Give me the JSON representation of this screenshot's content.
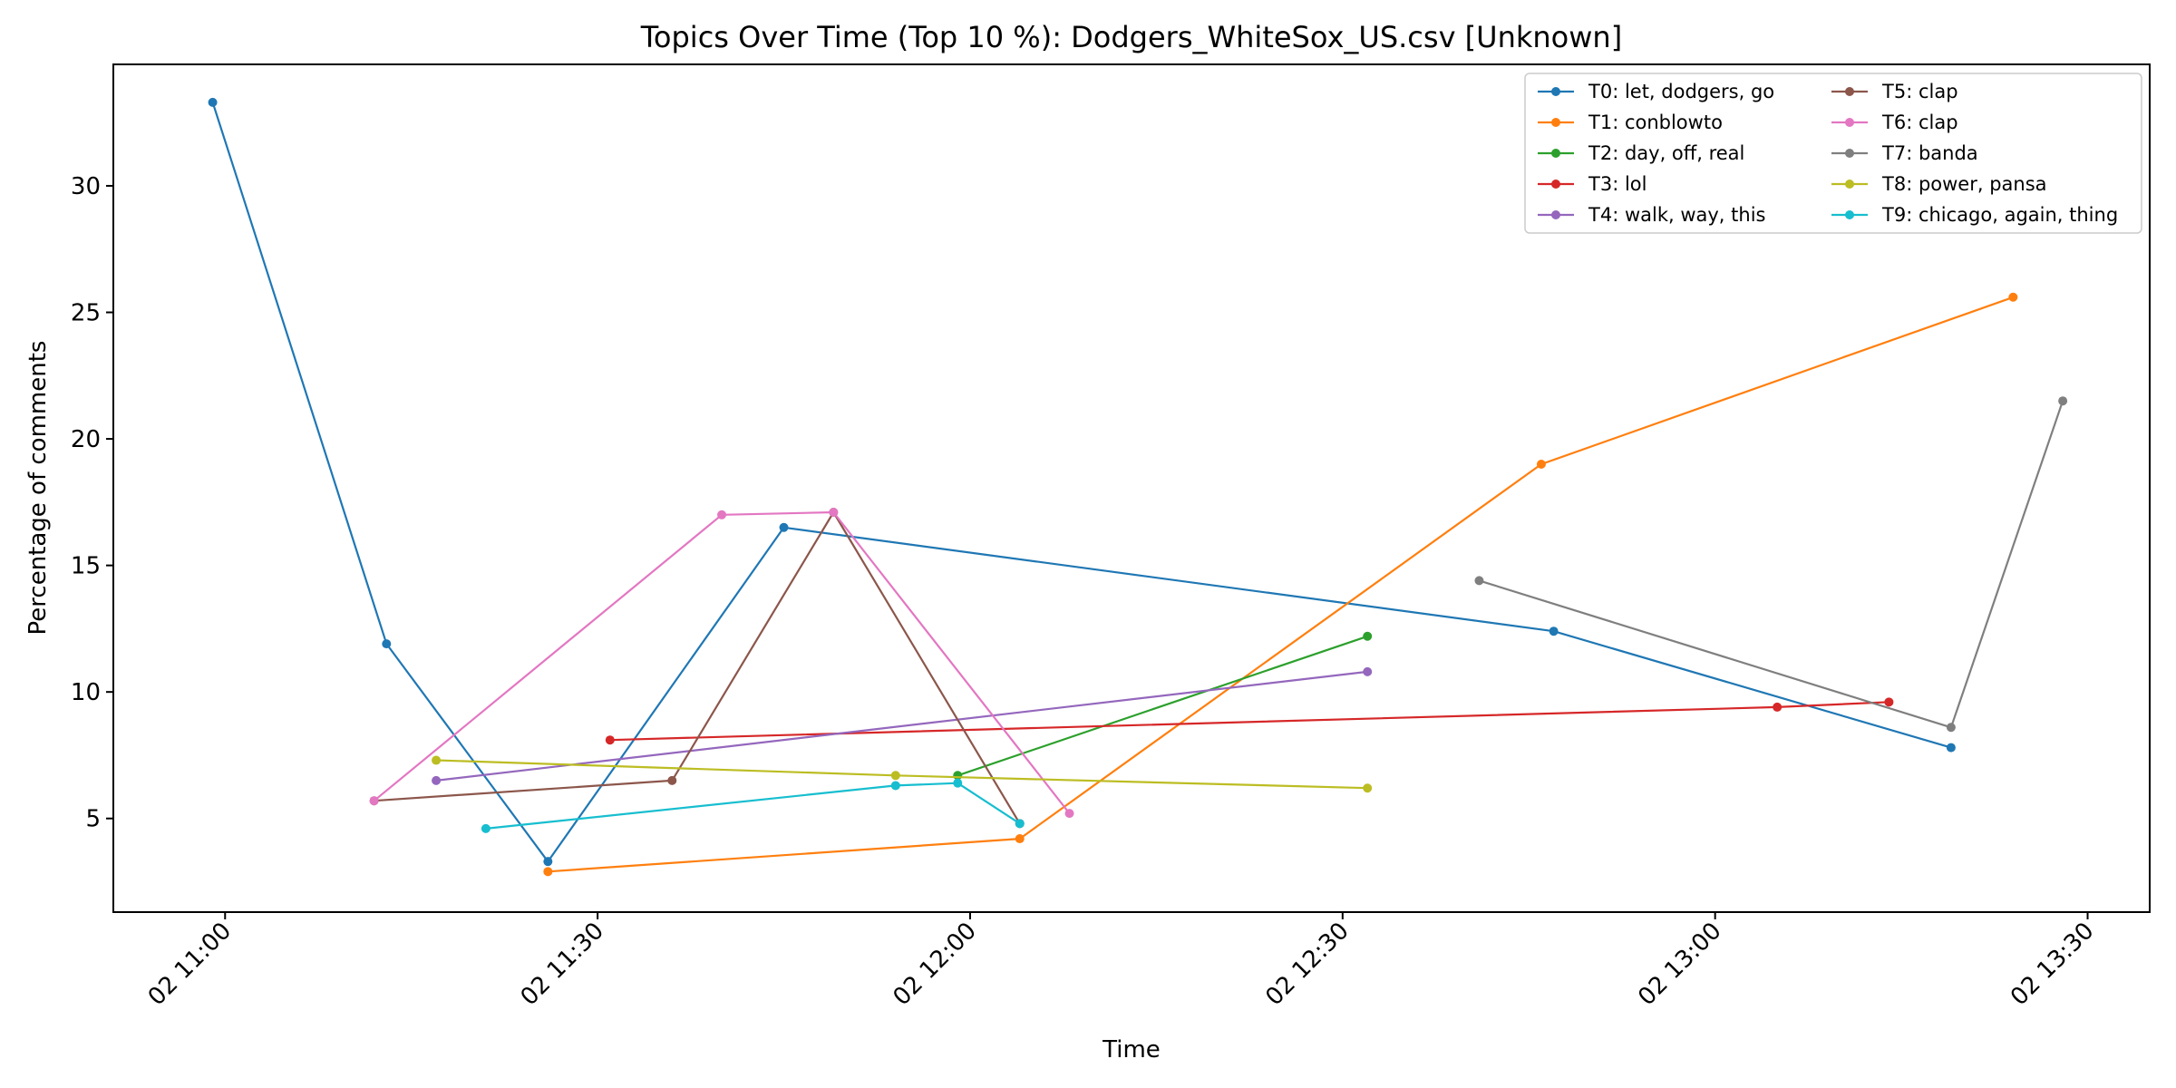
{
  "chart_data": {
    "type": "line",
    "title": "Topics Over Time (Top 10 %): Dodgers_WhiteSox_US.csv [Unknown]",
    "xlabel": "Time",
    "ylabel": "Percentage of comments",
    "x_ticks": [
      {
        "label": "02 11:00",
        "time": "11:00"
      },
      {
        "label": "02 11:30",
        "time": "11:30"
      },
      {
        "label": "02 12:00",
        "time": "12:00"
      },
      {
        "label": "02 12:30",
        "time": "12:30"
      },
      {
        "label": "02 13:00",
        "time": "13:00"
      },
      {
        "label": "02 13:30",
        "time": "13:30"
      }
    ],
    "xlim": [
      "10:51",
      "13:35"
    ],
    "y_ticks": [
      5,
      10,
      15,
      20,
      25,
      30
    ],
    "ylim": [
      1.3,
      34.8
    ],
    "grid": false,
    "legend_position": "top-right",
    "series": [
      {
        "name": "T0: let, dodgers, go",
        "color": "#1f77b4",
        "points": [
          [
            "10:59",
            33.3
          ],
          [
            "11:13",
            11.9
          ],
          [
            "11:26",
            3.3
          ],
          [
            "11:45",
            16.5
          ],
          [
            "12:47",
            12.4
          ],
          [
            "13:19",
            7.8
          ]
        ]
      },
      {
        "name": "T1: conblowto",
        "color": "#ff7f0e",
        "points": [
          [
            "11:26",
            2.9
          ],
          [
            "12:04",
            4.2
          ],
          [
            "12:46",
            19.0
          ],
          [
            "13:24",
            25.6
          ]
        ]
      },
      {
        "name": "T2: day, off, real",
        "color": "#2ca02c",
        "points": [
          [
            "11:59",
            6.7
          ],
          [
            "12:32",
            12.2
          ]
        ]
      },
      {
        "name": "T3: lol",
        "color": "#d62728",
        "points": [
          [
            "11:31",
            8.1
          ],
          [
            "13:05",
            9.4
          ],
          [
            "13:14",
            9.6
          ]
        ]
      },
      {
        "name": "T4: walk, way, this",
        "color": "#9467bd",
        "points": [
          [
            "11:17",
            6.5
          ],
          [
            "12:32",
            10.8
          ]
        ]
      },
      {
        "name": "T5: clap",
        "color": "#8c564b",
        "points": [
          [
            "11:12",
            5.7
          ],
          [
            "11:36",
            6.5
          ],
          [
            "11:49",
            17.1
          ],
          [
            "12:04",
            4.8
          ]
        ]
      },
      {
        "name": "T6: clap",
        "color": "#e377c2",
        "points": [
          [
            "11:12",
            5.7
          ],
          [
            "11:40",
            17.0
          ],
          [
            "11:49",
            17.1
          ],
          [
            "12:08",
            5.2
          ]
        ]
      },
      {
        "name": "T7: banda",
        "color": "#7f7f7f",
        "points": [
          [
            "12:41",
            14.4
          ],
          [
            "13:19",
            8.6
          ],
          [
            "13:28",
            21.5
          ]
        ]
      },
      {
        "name": "T8: power, pansa",
        "color": "#bcbd22",
        "points": [
          [
            "11:17",
            7.3
          ],
          [
            "11:54",
            6.7
          ],
          [
            "12:32",
            6.2
          ]
        ]
      },
      {
        "name": "T9: chicago, again, thing",
        "color": "#17becf",
        "points": [
          [
            "11:21",
            4.6
          ],
          [
            "11:54",
            6.3
          ],
          [
            "11:59",
            6.4
          ],
          [
            "12:04",
            4.8
          ]
        ]
      }
    ]
  }
}
